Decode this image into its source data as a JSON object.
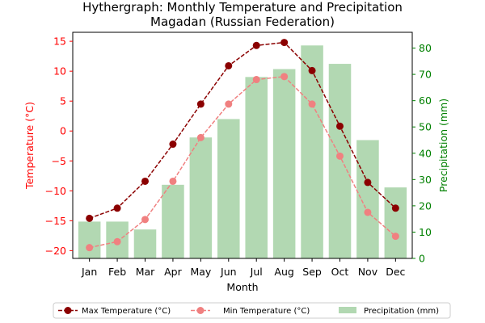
{
  "chart_data": {
    "type": "bar+line",
    "title": "Hythergraph: Monthly Temperature and Precipitation",
    "subtitle": "Magadan (Russian Federation)",
    "xlabel": "Month",
    "ylabel_left": "Temperature (°C)",
    "ylabel_right": "Precipitation (mm)",
    "categories": [
      "Jan",
      "Feb",
      "Mar",
      "Apr",
      "May",
      "Jun",
      "Jul",
      "Aug",
      "Sep",
      "Oct",
      "Nov",
      "Dec"
    ],
    "ylim_left": [
      -21.3,
      16.5
    ],
    "ylim_right": [
      0,
      86
    ],
    "yticks_left": [
      "15",
      "10",
      "5",
      "0",
      "−5",
      "−10",
      "−15",
      "−20"
    ],
    "yticks_left_values": [
      15,
      10,
      5,
      0,
      -5,
      -10,
      -15,
      -20
    ],
    "yticks_right": [
      "80",
      "70",
      "60",
      "50",
      "40",
      "30",
      "20",
      "10",
      "0"
    ],
    "yticks_right_values": [
      80,
      70,
      60,
      50,
      40,
      30,
      20,
      10,
      0
    ],
    "grid": false,
    "legend_position": "bottom",
    "series": [
      {
        "name": "Max Temperature (°C)",
        "kind": "line",
        "axis": "left",
        "color": "#8b0000",
        "values": [
          -14.6,
          -12.9,
          -8.4,
          -2.2,
          4.5,
          10.9,
          14.3,
          14.8,
          10.1,
          0.8,
          -8.6,
          -12.9
        ]
      },
      {
        "name": "Min Temperature (°C)",
        "kind": "line",
        "axis": "left",
        "color": "#f08080",
        "values": [
          -19.5,
          -18.5,
          -14.8,
          -8.4,
          -1.1,
          4.5,
          8.6,
          9.1,
          4.5,
          -4.2,
          -13.6,
          -17.6
        ]
      },
      {
        "name": "Precipitation (mm)",
        "kind": "bar",
        "axis": "right",
        "color": "#b2d8b2",
        "values": [
          14,
          14,
          11,
          28,
          46,
          53,
          69,
          72,
          81,
          74,
          45,
          27
        ]
      }
    ]
  }
}
